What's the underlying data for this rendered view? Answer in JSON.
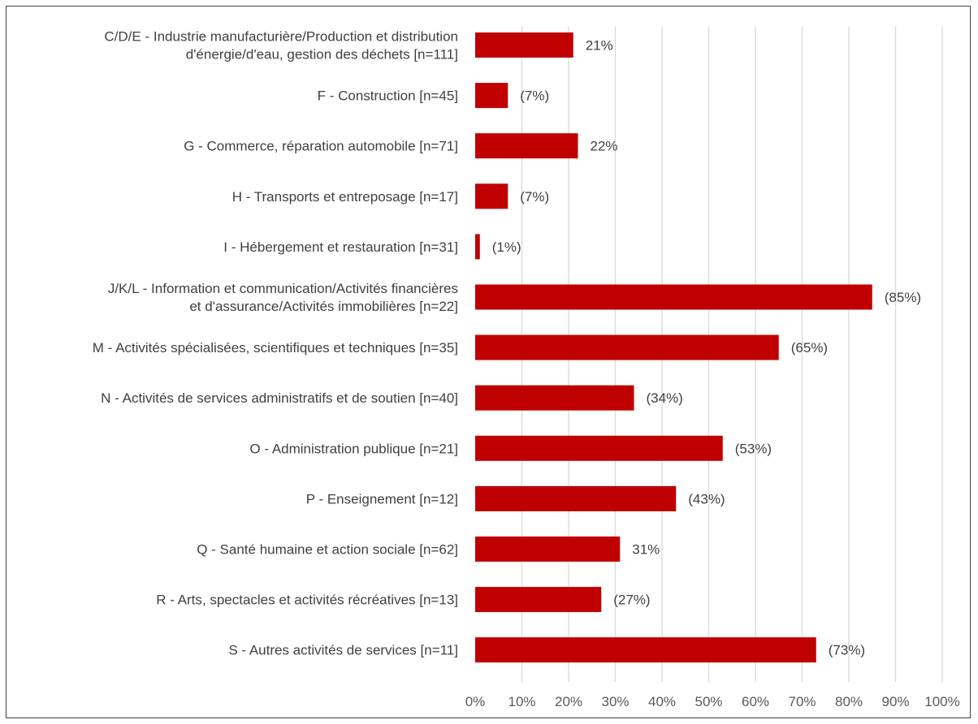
{
  "chart_data": {
    "type": "bar",
    "orientation": "horizontal",
    "categories": [
      [
        "C/D/E - Industrie manufacturière/Production et distribution",
        "d'énergie/d'eau, gestion des déchets [n=111]"
      ],
      [
        "F - Construction [n=45]"
      ],
      [
        "G - Commerce, réparation automobile [n=71]"
      ],
      [
        "H - Transports et entreposage [n=17]"
      ],
      [
        "I - Hébergement et restauration [n=31]"
      ],
      [
        "J/K/L - Information et communication/Activités financières",
        "et d'assurance/Activités immobilières [n=22]"
      ],
      [
        "M - Activités spécialisées, scientifiques et techniques [n=35]"
      ],
      [
        "N - Activités de services administratifs et de soutien [n=40]"
      ],
      [
        "O - Administration publique [n=21]"
      ],
      [
        "P - Enseignement [n=12]"
      ],
      [
        "Q - Santé humaine et action sociale [n=62]"
      ],
      [
        "R - Arts, spectacles et activités récréatives [n=13]"
      ],
      [
        "S - Autres activités de services [n=11]"
      ]
    ],
    "values": [
      21,
      7,
      22,
      7,
      1,
      85,
      65,
      34,
      53,
      43,
      31,
      27,
      73
    ],
    "data_labels": [
      "21%",
      "(7%)",
      "22%",
      "(7%)",
      "(1%)",
      "(85%)",
      "(65%)",
      "(34%)",
      "(53%)",
      "(43%)",
      "31%",
      "(27%)",
      "(73%)"
    ],
    "xlim": [
      0,
      100
    ],
    "x_ticks": [
      "0%",
      "10%",
      "20%",
      "30%",
      "40%",
      "50%",
      "60%",
      "70%",
      "80%",
      "90%",
      "100%"
    ],
    "grid": true,
    "bar_color": "#c00000",
    "grid_color": "#d9d9d9",
    "text_color": "#404040"
  }
}
